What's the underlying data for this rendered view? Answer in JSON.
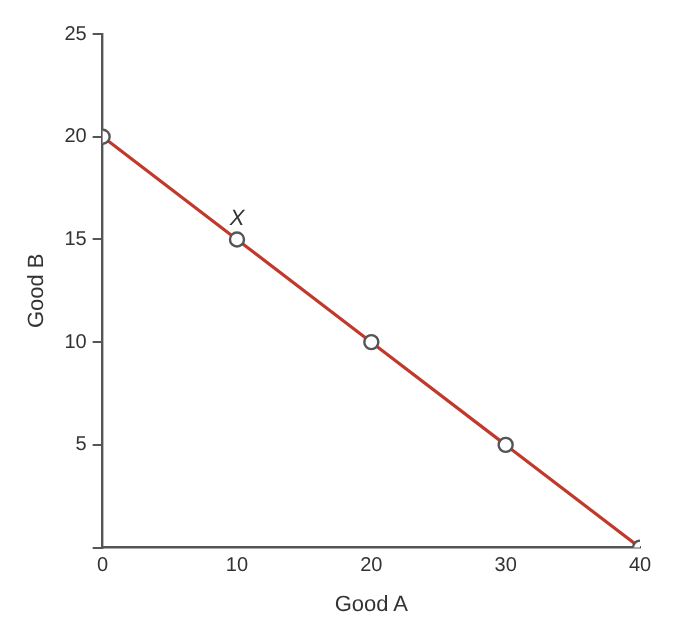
{
  "chart_data": {
    "type": "line",
    "xlabel": "Good A",
    "ylabel": "Good B",
    "x": [
      0,
      10,
      20,
      30,
      40
    ],
    "series": [
      {
        "color": "#c0392b",
        "values": [
          20,
          15,
          10,
          5,
          0
        ]
      }
    ],
    "xlim": [
      0,
      40
    ],
    "xticks": [
      0,
      10,
      20,
      30,
      40
    ],
    "ylim": [
      0,
      25
    ],
    "yticks": [
      {
        "value": 0,
        "label": null
      },
      5,
      10,
      15,
      20,
      25
    ],
    "marker": "circle",
    "grid": false,
    "legend": false,
    "annotations": [
      {
        "text": "X",
        "x": 10,
        "y": 15
      }
    ]
  }
}
